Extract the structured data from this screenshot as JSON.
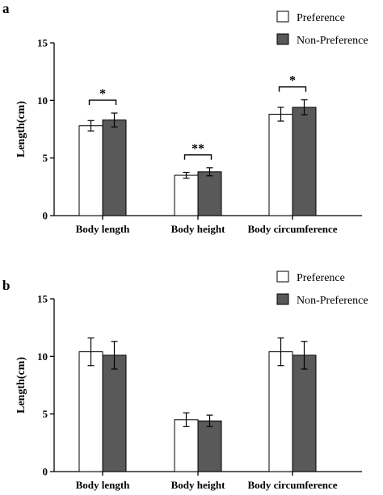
{
  "chart_data": [
    {
      "type": "bar",
      "panel": "a",
      "ylabel": "Length(cm)",
      "xlabel": "",
      "ylim": [
        0,
        15
      ],
      "yticks": [
        0,
        5,
        10,
        15
      ],
      "categories": [
        "Body length",
        "Body height",
        "Body circumference"
      ],
      "series": [
        {
          "name": "Preference",
          "color": "#ffffff",
          "values": [
            7.8,
            3.5,
            8.8
          ],
          "errors": [
            0.45,
            0.25,
            0.6
          ]
        },
        {
          "name": "Non-Preference",
          "color": "#595959",
          "values": [
            8.3,
            3.8,
            9.4
          ],
          "errors": [
            0.6,
            0.35,
            0.65
          ]
        }
      ],
      "significance": [
        "*",
        "**",
        "*"
      ],
      "legend": "top-right",
      "grid": false
    },
    {
      "type": "bar",
      "panel": "b",
      "ylabel": "Length(cm)",
      "xlabel": "",
      "ylim": [
        0,
        15
      ],
      "yticks": [
        0,
        5,
        10,
        15
      ],
      "categories": [
        "Body length",
        "Body height",
        "Body circumference"
      ],
      "series": [
        {
          "name": "Preference",
          "color": "#ffffff",
          "values": [
            10.4,
            4.5,
            10.4
          ],
          "errors": [
            1.2,
            0.6,
            1.2
          ]
        },
        {
          "name": "Non-Preference",
          "color": "#595959",
          "values": [
            10.1,
            4.4,
            10.1
          ],
          "errors": [
            1.2,
            0.5,
            1.2
          ]
        }
      ],
      "significance": [
        "",
        "",
        ""
      ],
      "legend": "top-right",
      "grid": false
    }
  ]
}
